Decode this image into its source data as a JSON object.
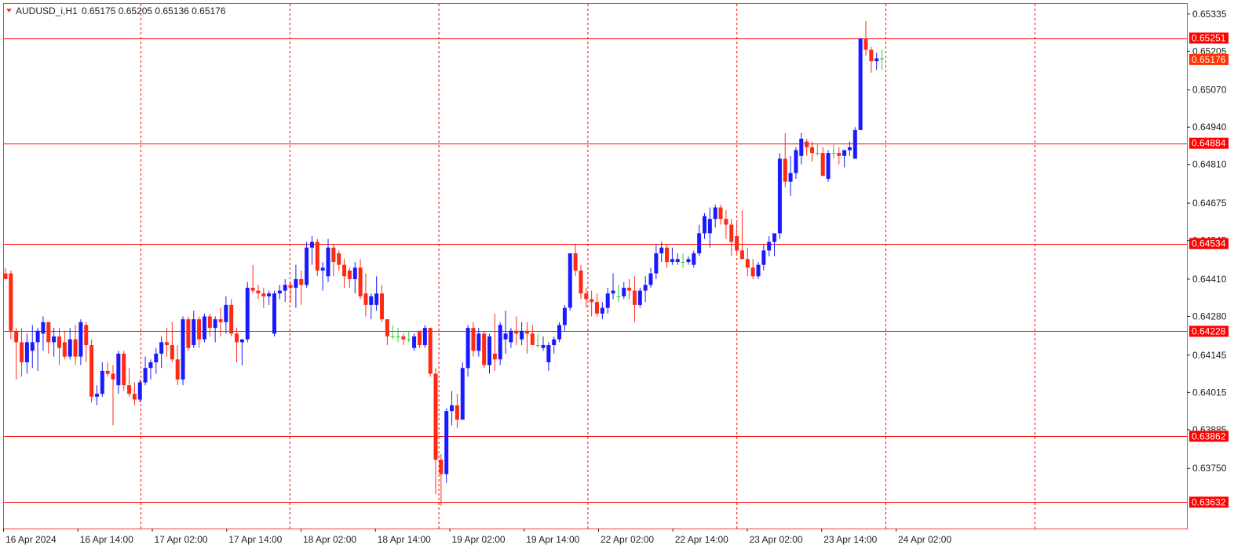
{
  "symbol_line": {
    "symbol": "AUDUSD_i,H1",
    "ohlc": "0.65175 0.65205 0.65136 0.65176"
  },
  "colors": {
    "bull_candle": "#1a1aff",
    "bear_candle": "#ff2a14",
    "doji_candle": "#33cc33",
    "level_line": "#ff0000",
    "grid_line": "#ff0000",
    "current_price_tag": "#ff3300",
    "background": "#ffffff",
    "axis_text": "#222222"
  },
  "chart_data": {
    "type": "candlestick",
    "timeframe": "H1",
    "ylim": [
      0.6354,
      0.6537
    ],
    "grid": "vertical dashed lines at day separators",
    "y_ticks": [
      "0.65335",
      "0.65205",
      "0.65070",
      "0.64940",
      "0.64810",
      "0.64675",
      "0.64545",
      "0.64410",
      "0.64280",
      "0.64145",
      "0.64015",
      "0.63885",
      "0.63750"
    ],
    "x_ticks": [
      "16 Apr 2024",
      "16 Apr 14:00",
      "17 Apr 02:00",
      "17 Apr 14:00",
      "18 Apr 02:00",
      "18 Apr 14:00",
      "19 Apr 02:00",
      "19 Apr 14:00",
      "22 Apr 02:00",
      "22 Apr 14:00",
      "23 Apr 02:00",
      "23 Apr 14:00",
      "24 Apr 02:00"
    ],
    "horizontal_levels": [
      {
        "label": "0.65251",
        "value": 0.65251
      },
      {
        "label": "0.64884",
        "value": 0.64884
      },
      {
        "label": "0.64534",
        "value": 0.64534
      },
      {
        "label": "0.64228",
        "value": 0.64228
      },
      {
        "label": "0.63862",
        "value": 0.63862
      },
      {
        "label": "0.63632",
        "value": 0.63632
      }
    ],
    "current_price": {
      "label": "0.65176",
      "value": 0.65176
    },
    "candles": [
      {
        "o": 0.6443,
        "h": 0.6445,
        "l": 0.6441,
        "c": 0.6441
      },
      {
        "o": 0.6443,
        "h": 0.6444,
        "l": 0.642,
        "c": 0.6423
      },
      {
        "o": 0.6423,
        "h": 0.6424,
        "l": 0.6406,
        "c": 0.6419
      },
      {
        "o": 0.6419,
        "h": 0.6424,
        "l": 0.6407,
        "c": 0.6412
      },
      {
        "o": 0.6412,
        "h": 0.6422,
        "l": 0.6408,
        "c": 0.6419
      },
      {
        "o": 0.6416,
        "h": 0.6425,
        "l": 0.641,
        "c": 0.6419
      },
      {
        "o": 0.6419,
        "h": 0.6424,
        "l": 0.6409,
        "c": 0.6423
      },
      {
        "o": 0.6422,
        "h": 0.6428,
        "l": 0.6416,
        "c": 0.6426
      },
      {
        "o": 0.6426,
        "h": 0.6426,
        "l": 0.6415,
        "c": 0.6419
      },
      {
        "o": 0.6419,
        "h": 0.6424,
        "l": 0.6414,
        "c": 0.6421
      },
      {
        "o": 0.6421,
        "h": 0.6424,
        "l": 0.6411,
        "c": 0.6417
      },
      {
        "o": 0.6419,
        "h": 0.6423,
        "l": 0.6413,
        "c": 0.6414
      },
      {
        "o": 0.6414,
        "h": 0.6424,
        "l": 0.6413,
        "c": 0.642
      },
      {
        "o": 0.642,
        "h": 0.6425,
        "l": 0.6411,
        "c": 0.6414
      },
      {
        "o": 0.6414,
        "h": 0.6427,
        "l": 0.6411,
        "c": 0.6426
      },
      {
        "o": 0.6425,
        "h": 0.6426,
        "l": 0.6412,
        "c": 0.6418
      },
      {
        "o": 0.6418,
        "h": 0.642,
        "l": 0.6398,
        "c": 0.64
      },
      {
        "o": 0.64,
        "h": 0.6404,
        "l": 0.6397,
        "c": 0.6401
      },
      {
        "o": 0.6401,
        "h": 0.6412,
        "l": 0.64,
        "c": 0.6409
      },
      {
        "o": 0.6409,
        "h": 0.6412,
        "l": 0.6407,
        "c": 0.6408
      },
      {
        "o": 0.6408,
        "h": 0.6411,
        "l": 0.639,
        "c": 0.6406
      },
      {
        "o": 0.6404,
        "h": 0.6416,
        "l": 0.6401,
        "c": 0.6415
      },
      {
        "o": 0.6415,
        "h": 0.6416,
        "l": 0.6402,
        "c": 0.6404
      },
      {
        "o": 0.6404,
        "h": 0.641,
        "l": 0.64,
        "c": 0.6401
      },
      {
        "o": 0.6401,
        "h": 0.6405,
        "l": 0.6397,
        "c": 0.6399
      },
      {
        "o": 0.6399,
        "h": 0.6406,
        "l": 0.6398,
        "c": 0.6405
      },
      {
        "o": 0.6405,
        "h": 0.6414,
        "l": 0.6404,
        "c": 0.641
      },
      {
        "o": 0.641,
        "h": 0.6413,
        "l": 0.6406,
        "c": 0.6412
      },
      {
        "o": 0.6412,
        "h": 0.6417,
        "l": 0.6408,
        "c": 0.6415
      },
      {
        "o": 0.6415,
        "h": 0.6421,
        "l": 0.641,
        "c": 0.6419
      },
      {
        "o": 0.6419,
        "h": 0.6424,
        "l": 0.6414,
        "c": 0.6418
      },
      {
        "o": 0.6418,
        "h": 0.6426,
        "l": 0.6412,
        "c": 0.6413
      },
      {
        "o": 0.6413,
        "h": 0.6418,
        "l": 0.6404,
        "c": 0.6406
      },
      {
        "o": 0.6406,
        "h": 0.6428,
        "l": 0.6404,
        "c": 0.6427
      },
      {
        "o": 0.6427,
        "h": 0.6428,
        "l": 0.6416,
        "c": 0.6417
      },
      {
        "o": 0.6418,
        "h": 0.643,
        "l": 0.6417,
        "c": 0.6427
      },
      {
        "o": 0.6427,
        "h": 0.6428,
        "l": 0.6417,
        "c": 0.642
      },
      {
        "o": 0.642,
        "h": 0.6429,
        "l": 0.6419,
        "c": 0.6428
      },
      {
        "o": 0.6428,
        "h": 0.6429,
        "l": 0.6421,
        "c": 0.6424
      },
      {
        "o": 0.6424,
        "h": 0.6428,
        "l": 0.6419,
        "c": 0.6427
      },
      {
        "o": 0.6427,
        "h": 0.6431,
        "l": 0.6421,
        "c": 0.6426
      },
      {
        "o": 0.6426,
        "h": 0.6435,
        "l": 0.6422,
        "c": 0.6432
      },
      {
        "o": 0.6432,
        "h": 0.6434,
        "l": 0.6421,
        "c": 0.6422
      },
      {
        "o": 0.6422,
        "h": 0.6424,
        "l": 0.6412,
        "c": 0.6419
      },
      {
        "o": 0.6419,
        "h": 0.642,
        "l": 0.6411,
        "c": 0.642
      },
      {
        "o": 0.642,
        "h": 0.644,
        "l": 0.6419,
        "c": 0.6438
      },
      {
        "o": 0.6438,
        "h": 0.6446,
        "l": 0.6436,
        "c": 0.6437
      },
      {
        "o": 0.6437,
        "h": 0.6439,
        "l": 0.6434,
        "c": 0.6436
      },
      {
        "o": 0.6436,
        "h": 0.6438,
        "l": 0.6431,
        "c": 0.6435
      },
      {
        "o": 0.6435,
        "h": 0.6437,
        "l": 0.6432,
        "c": 0.6436
      },
      {
        "o": 0.6422,
        "h": 0.6437,
        "l": 0.6421,
        "c": 0.6436
      },
      {
        "o": 0.6436,
        "h": 0.6439,
        "l": 0.6434,
        "c": 0.6437
      },
      {
        "o": 0.6437,
        "h": 0.6441,
        "l": 0.6433,
        "c": 0.6439
      },
      {
        "o": 0.6439,
        "h": 0.644,
        "l": 0.6433,
        "c": 0.6438
      },
      {
        "o": 0.6438,
        "h": 0.6446,
        "l": 0.6431,
        "c": 0.6441
      },
      {
        "o": 0.6441,
        "h": 0.6444,
        "l": 0.6432,
        "c": 0.6439
      },
      {
        "o": 0.6439,
        "h": 0.6454,
        "l": 0.6438,
        "c": 0.6452
      },
      {
        "o": 0.6452,
        "h": 0.6456,
        "l": 0.6446,
        "c": 0.6454
      },
      {
        "o": 0.6454,
        "h": 0.6455,
        "l": 0.6442,
        "c": 0.6444
      },
      {
        "o": 0.6444,
        "h": 0.6447,
        "l": 0.6437,
        "c": 0.6445
      },
      {
        "o": 0.6442,
        "h": 0.6455,
        "l": 0.644,
        "c": 0.6452
      },
      {
        "o": 0.6452,
        "h": 0.6453,
        "l": 0.6442,
        "c": 0.6447
      },
      {
        "o": 0.645,
        "h": 0.6451,
        "l": 0.6444,
        "c": 0.6446
      },
      {
        "o": 0.6446,
        "h": 0.6448,
        "l": 0.6438,
        "c": 0.6442
      },
      {
        "o": 0.6444,
        "h": 0.6445,
        "l": 0.6438,
        "c": 0.6441
      },
      {
        "o": 0.6441,
        "h": 0.6447,
        "l": 0.6436,
        "c": 0.6445
      },
      {
        "o": 0.6445,
        "h": 0.6448,
        "l": 0.6434,
        "c": 0.6435
      },
      {
        "o": 0.6436,
        "h": 0.6443,
        "l": 0.6428,
        "c": 0.6432
      },
      {
        "o": 0.6432,
        "h": 0.6436,
        "l": 0.6427,
        "c": 0.6435
      },
      {
        "o": 0.6432,
        "h": 0.6442,
        "l": 0.643,
        "c": 0.6436
      },
      {
        "o": 0.6436,
        "h": 0.6439,
        "l": 0.6426,
        "c": 0.6427
      },
      {
        "o": 0.6427,
        "h": 0.6427,
        "l": 0.6418,
        "c": 0.6421
      },
      {
        "o": 0.6421,
        "h": 0.6425,
        "l": 0.642,
        "c": 0.6421
      },
      {
        "o": 0.6421,
        "h": 0.6424,
        "l": 0.6419,
        "c": 0.6421
      },
      {
        "o": 0.6421,
        "h": 0.6422,
        "l": 0.6418,
        "c": 0.642
      },
      {
        "o": 0.642,
        "h": 0.6423,
        "l": 0.6419,
        "c": 0.642
      },
      {
        "o": 0.6417,
        "h": 0.6422,
        "l": 0.6416,
        "c": 0.6421
      },
      {
        "o": 0.6423,
        "h": 0.6423,
        "l": 0.6417,
        "c": 0.6418
      },
      {
        "o": 0.6418,
        "h": 0.6425,
        "l": 0.6417,
        "c": 0.6424
      },
      {
        "o": 0.6424,
        "h": 0.6424,
        "l": 0.6407,
        "c": 0.6408
      },
      {
        "o": 0.6408,
        "h": 0.641,
        "l": 0.6366,
        "c": 0.6378
      },
      {
        "o": 0.6378,
        "h": 0.638,
        "l": 0.6362,
        "c": 0.6373
      },
      {
        "o": 0.6373,
        "h": 0.6396,
        "l": 0.637,
        "c": 0.6395
      },
      {
        "o": 0.6395,
        "h": 0.6402,
        "l": 0.639,
        "c": 0.6397
      },
      {
        "o": 0.6397,
        "h": 0.6401,
        "l": 0.6389,
        "c": 0.6392
      },
      {
        "o": 0.6392,
        "h": 0.6412,
        "l": 0.6392,
        "c": 0.641
      },
      {
        "o": 0.641,
        "h": 0.6425,
        "l": 0.6407,
        "c": 0.6424
      },
      {
        "o": 0.6424,
        "h": 0.6426,
        "l": 0.6414,
        "c": 0.6416
      },
      {
        "o": 0.6416,
        "h": 0.6424,
        "l": 0.6414,
        "c": 0.6422
      },
      {
        "o": 0.6422,
        "h": 0.6423,
        "l": 0.641,
        "c": 0.6411
      },
      {
        "o": 0.6411,
        "h": 0.6422,
        "l": 0.6408,
        "c": 0.6421
      },
      {
        "o": 0.6415,
        "h": 0.6429,
        "l": 0.6409,
        "c": 0.6413
      },
      {
        "o": 0.6413,
        "h": 0.6426,
        "l": 0.6411,
        "c": 0.6425
      },
      {
        "o": 0.642,
        "h": 0.643,
        "l": 0.6415,
        "c": 0.6422
      },
      {
        "o": 0.6419,
        "h": 0.6424,
        "l": 0.6417,
        "c": 0.6423
      },
      {
        "o": 0.6423,
        "h": 0.6428,
        "l": 0.6418,
        "c": 0.6422
      },
      {
        "o": 0.642,
        "h": 0.6426,
        "l": 0.6418,
        "c": 0.6423
      },
      {
        "o": 0.6423,
        "h": 0.6426,
        "l": 0.6415,
        "c": 0.6422
      },
      {
        "o": 0.6422,
        "h": 0.6425,
        "l": 0.6418,
        "c": 0.6418
      },
      {
        "o": 0.6418,
        "h": 0.6422,
        "l": 0.6417,
        "c": 0.6418
      },
      {
        "o": 0.6417,
        "h": 0.6421,
        "l": 0.6416,
        "c": 0.6418
      },
      {
        "o": 0.6412,
        "h": 0.6419,
        "l": 0.6409,
        "c": 0.6418
      },
      {
        "o": 0.6418,
        "h": 0.6421,
        "l": 0.6415,
        "c": 0.642
      },
      {
        "o": 0.642,
        "h": 0.6426,
        "l": 0.6419,
        "c": 0.6425
      },
      {
        "o": 0.6425,
        "h": 0.6432,
        "l": 0.6423,
        "c": 0.6431
      },
      {
        "o": 0.6431,
        "h": 0.645,
        "l": 0.643,
        "c": 0.645
      },
      {
        "o": 0.645,
        "h": 0.6453,
        "l": 0.6442,
        "c": 0.6444
      },
      {
        "o": 0.6444,
        "h": 0.6446,
        "l": 0.6434,
        "c": 0.6436
      },
      {
        "o": 0.6436,
        "h": 0.6438,
        "l": 0.6431,
        "c": 0.6434
      },
      {
        "o": 0.6434,
        "h": 0.6437,
        "l": 0.6428,
        "c": 0.6433
      },
      {
        "o": 0.6433,
        "h": 0.6436,
        "l": 0.6428,
        "c": 0.6429
      },
      {
        "o": 0.6429,
        "h": 0.6433,
        "l": 0.6427,
        "c": 0.6431
      },
      {
        "o": 0.6431,
        "h": 0.6438,
        "l": 0.6429,
        "c": 0.6436
      },
      {
        "o": 0.6436,
        "h": 0.6443,
        "l": 0.6434,
        "c": 0.6437
      },
      {
        "o": 0.6435,
        "h": 0.6439,
        "l": 0.6433,
        "c": 0.6435
      },
      {
        "o": 0.6435,
        "h": 0.644,
        "l": 0.6434,
        "c": 0.6438
      },
      {
        "o": 0.6438,
        "h": 0.6441,
        "l": 0.6434,
        "c": 0.6437
      },
      {
        "o": 0.6437,
        "h": 0.6442,
        "l": 0.6426,
        "c": 0.6432
      },
      {
        "o": 0.6432,
        "h": 0.6438,
        "l": 0.6431,
        "c": 0.6437
      },
      {
        "o": 0.6437,
        "h": 0.6442,
        "l": 0.6433,
        "c": 0.6439
      },
      {
        "o": 0.6439,
        "h": 0.6445,
        "l": 0.6438,
        "c": 0.6443
      },
      {
        "o": 0.6443,
        "h": 0.6453,
        "l": 0.6441,
        "c": 0.645
      },
      {
        "o": 0.645,
        "h": 0.6454,
        "l": 0.6447,
        "c": 0.6452
      },
      {
        "o": 0.6452,
        "h": 0.6453,
        "l": 0.6445,
        "c": 0.6447
      },
      {
        "o": 0.6447,
        "h": 0.6452,
        "l": 0.6446,
        "c": 0.6448
      },
      {
        "o": 0.6447,
        "h": 0.645,
        "l": 0.6446,
        "c": 0.6448
      },
      {
        "o": 0.6447,
        "h": 0.645,
        "l": 0.6445,
        "c": 0.6447
      },
      {
        "o": 0.6447,
        "h": 0.6449,
        "l": 0.6446,
        "c": 0.6448
      },
      {
        "o": 0.6446,
        "h": 0.6451,
        "l": 0.6445,
        "c": 0.645
      },
      {
        "o": 0.645,
        "h": 0.646,
        "l": 0.6449,
        "c": 0.6457
      },
      {
        "o": 0.6457,
        "h": 0.6464,
        "l": 0.6455,
        "c": 0.6463
      },
      {
        "o": 0.6457,
        "h": 0.6466,
        "l": 0.6452,
        "c": 0.6462
      },
      {
        "o": 0.6462,
        "h": 0.6467,
        "l": 0.6459,
        "c": 0.6466
      },
      {
        "o": 0.6466,
        "h": 0.6467,
        "l": 0.646,
        "c": 0.6462
      },
      {
        "o": 0.6462,
        "h": 0.6465,
        "l": 0.6455,
        "c": 0.646
      },
      {
        "o": 0.646,
        "h": 0.6462,
        "l": 0.6449,
        "c": 0.6454
      },
      {
        "o": 0.6456,
        "h": 0.6461,
        "l": 0.645,
        "c": 0.6451
      },
      {
        "o": 0.6451,
        "h": 0.6465,
        "l": 0.6448,
        "c": 0.6448
      },
      {
        "o": 0.6448,
        "h": 0.6452,
        "l": 0.6442,
        "c": 0.6445
      },
      {
        "o": 0.6445,
        "h": 0.6448,
        "l": 0.6441,
        "c": 0.6442
      },
      {
        "o": 0.6442,
        "h": 0.6447,
        "l": 0.6441,
        "c": 0.6446
      },
      {
        "o": 0.6446,
        "h": 0.6453,
        "l": 0.6444,
        "c": 0.6451
      },
      {
        "o": 0.6451,
        "h": 0.6456,
        "l": 0.6449,
        "c": 0.6454
      },
      {
        "o": 0.6454,
        "h": 0.6457,
        "l": 0.6449,
        "c": 0.6457
      },
      {
        "o": 0.6457,
        "h": 0.6485,
        "l": 0.6455,
        "c": 0.6483
      },
      {
        "o": 0.6483,
        "h": 0.6492,
        "l": 0.6473,
        "c": 0.6475
      },
      {
        "o": 0.6475,
        "h": 0.6484,
        "l": 0.647,
        "c": 0.6478
      },
      {
        "o": 0.6478,
        "h": 0.6487,
        "l": 0.6476,
        "c": 0.6486
      },
      {
        "o": 0.6484,
        "h": 0.6492,
        "l": 0.6481,
        "c": 0.649
      },
      {
        "o": 0.6489,
        "h": 0.649,
        "l": 0.6484,
        "c": 0.6487
      },
      {
        "o": 0.6487,
        "h": 0.6489,
        "l": 0.6482,
        "c": 0.6485
      },
      {
        "o": 0.6485,
        "h": 0.6488,
        "l": 0.6484,
        "c": 0.6485
      },
      {
        "o": 0.6485,
        "h": 0.6487,
        "l": 0.6477,
        "c": 0.6477
      },
      {
        "o": 0.6476,
        "h": 0.6486,
        "l": 0.6475,
        "c": 0.6485
      },
      {
        "o": 0.6485,
        "h": 0.6488,
        "l": 0.6483,
        "c": 0.6485
      },
      {
        "o": 0.6485,
        "h": 0.6487,
        "l": 0.6481,
        "c": 0.6484
      },
      {
        "o": 0.6484,
        "h": 0.6486,
        "l": 0.648,
        "c": 0.6486
      },
      {
        "o": 0.6486,
        "h": 0.6489,
        "l": 0.6484,
        "c": 0.6487
      },
      {
        "o": 0.6483,
        "h": 0.6494,
        "l": 0.6484,
        "c": 0.6493
      },
      {
        "o": 0.6493,
        "h": 0.6525,
        "l": 0.6493,
        "c": 0.6525
      },
      {
        "o": 0.6525,
        "h": 0.6531,
        "l": 0.6519,
        "c": 0.6521
      },
      {
        "o": 0.6521,
        "h": 0.6522,
        "l": 0.6513,
        "c": 0.6517
      },
      {
        "o": 0.6517,
        "h": 0.652,
        "l": 0.6514,
        "c": 0.6518
      },
      {
        "o": 0.6518,
        "h": 0.6521,
        "l": 0.6514,
        "c": 0.6518
      }
    ]
  }
}
